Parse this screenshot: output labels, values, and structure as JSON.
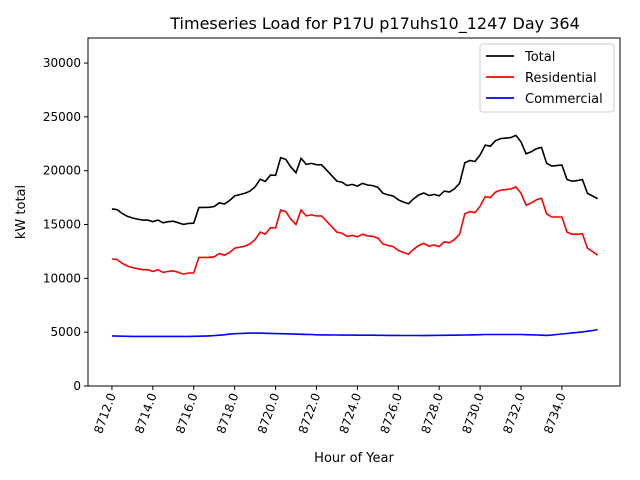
{
  "chart_data": {
    "type": "line",
    "title": "Timeseries Load for P17U p17uhs10_1247  Day 364",
    "xlabel": "Hour of Year",
    "ylabel": "kW total",
    "xlim": [
      8710.83,
      8736.84
    ],
    "ylim": [
      0,
      32330
    ],
    "x_start": 8712.0,
    "x_step": 0.25,
    "xticks": [
      8712,
      8714,
      8716,
      8718,
      8720,
      8722,
      8724,
      8726,
      8728,
      8730,
      8732,
      8734
    ],
    "xtick_labels": [
      "8712.0",
      "8714.0",
      "8716.0",
      "8718.0",
      "8720.0",
      "8722.0",
      "8724.0",
      "8726.0",
      "8728.0",
      "8730.0",
      "8732.0",
      "8734.0"
    ],
    "yticks": [
      0,
      5000,
      10000,
      15000,
      20000,
      25000,
      30000
    ],
    "ytick_labels": [
      "0",
      "5000",
      "10000",
      "15000",
      "20000",
      "25000",
      "30000"
    ],
    "grid": false,
    "legend_position": "top-right",
    "series": [
      {
        "name": "Total",
        "color": "#000000",
        "values": [
          16450,
          16390,
          16030,
          15770,
          15610,
          15510,
          15410,
          15410,
          15260,
          15410,
          15160,
          15260,
          15310,
          15160,
          15010,
          15110,
          15120,
          16580,
          16590,
          16600,
          16680,
          17020,
          16910,
          17220,
          17660,
          17780,
          17900,
          18110,
          18510,
          19210,
          19000,
          19590,
          19570,
          21210,
          21050,
          20340,
          19820,
          21150,
          20590,
          20680,
          20560,
          20550,
          20050,
          19540,
          19040,
          18930,
          18630,
          18730,
          18570,
          18820,
          18670,
          18620,
          18460,
          17910,
          17750,
          17650,
          17300,
          17090,
          16940,
          17390,
          17740,
          17930,
          17700,
          17800,
          17660,
          18110,
          18020,
          18320,
          18830,
          20740,
          20950,
          20860,
          21470,
          22380,
          22280,
          22780,
          22980,
          23030,
          23080,
          23280,
          22680,
          21570,
          21760,
          22040,
          22170,
          20700,
          20430,
          20480,
          20530,
          19180,
          19030,
          19080,
          19180,
          17890,
          17650,
          17400
        ]
      },
      {
        "name": "Residential",
        "color": "#ff0000",
        "values": [
          11800,
          11750,
          11400,
          11150,
          11000,
          10900,
          10800,
          10800,
          10650,
          10800,
          10550,
          10650,
          10700,
          10550,
          10400,
          10500,
          10500,
          11950,
          11950,
          11950,
          12000,
          12300,
          12150,
          12400,
          12800,
          12900,
          13000,
          13200,
          13600,
          14300,
          14100,
          14700,
          14700,
          16350,
          16200,
          15500,
          15000,
          16350,
          15800,
          15900,
          15800,
          15800,
          15300,
          14800,
          14300,
          14200,
          13900,
          14000,
          13850,
          14100,
          13950,
          13900,
          13750,
          13200,
          13050,
          12950,
          12600,
          12400,
          12250,
          12700,
          13050,
          13250,
          13000,
          13100,
          12950,
          13400,
          13300,
          13600,
          14100,
          16000,
          16200,
          16100,
          16700,
          17600,
          17500,
          18000,
          18200,
          18250,
          18300,
          18500,
          17900,
          16800,
          17000,
          17300,
          17450,
          16000,
          15700,
          15700,
          15700,
          14300,
          14100,
          14100,
          14150,
          12800,
          12500,
          12150
        ]
      },
      {
        "name": "Commercial",
        "color": "#0000ff",
        "values": [
          4650,
          4640,
          4630,
          4620,
          4610,
          4610,
          4610,
          4610,
          4610,
          4610,
          4610,
          4610,
          4610,
          4610,
          4610,
          4610,
          4620,
          4630,
          4640,
          4650,
          4680,
          4720,
          4760,
          4820,
          4860,
          4880,
          4900,
          4910,
          4910,
          4910,
          4900,
          4890,
          4870,
          4860,
          4850,
          4840,
          4820,
          4800,
          4790,
          4780,
          4760,
          4750,
          4750,
          4740,
          4740,
          4730,
          4730,
          4730,
          4720,
          4720,
          4720,
          4720,
          4710,
          4710,
          4700,
          4700,
          4700,
          4690,
          4690,
          4690,
          4690,
          4680,
          4700,
          4700,
          4710,
          4710,
          4720,
          4720,
          4730,
          4740,
          4750,
          4760,
          4770,
          4780,
          4780,
          4780,
          4780,
          4780,
          4780,
          4780,
          4780,
          4770,
          4760,
          4740,
          4720,
          4700,
          4730,
          4780,
          4830,
          4880,
          4930,
          4980,
          5030,
          5090,
          5150,
          5250
        ]
      }
    ]
  }
}
